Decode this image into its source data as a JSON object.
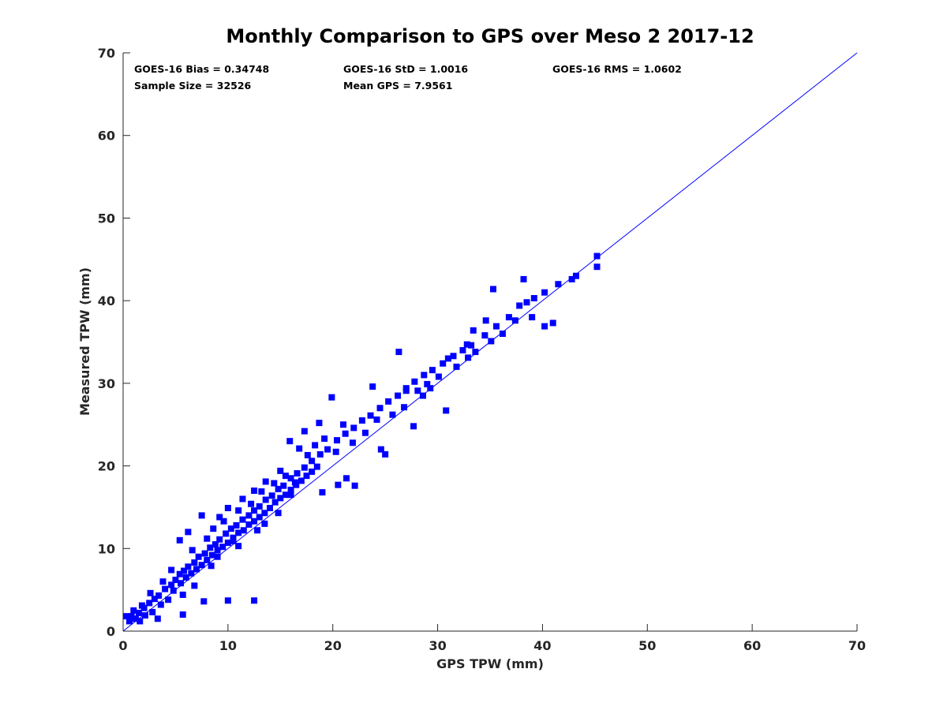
{
  "chart_data": {
    "type": "scatter",
    "title": "Monthly Comparison to GPS over Meso 2 2017-12",
    "xlabel": "GPS TPW (mm)",
    "ylabel": "Measured TPW (mm)",
    "xlim": [
      0,
      70
    ],
    "ylim": [
      0,
      70
    ],
    "xticks": [
      0,
      10,
      20,
      30,
      40,
      50,
      60,
      70
    ],
    "yticks": [
      0,
      10,
      20,
      30,
      40,
      50,
      60,
      70
    ],
    "grid": false,
    "annotations": [
      {
        "text": "GOES-16 Bias = 0.34748",
        "position": "top-left"
      },
      {
        "text": "GOES-16 StD = 1.0016",
        "position": "top-center"
      },
      {
        "text": "GOES-16 RMS = 1.0602",
        "position": "top-right"
      },
      {
        "text": "Sample Size = 32526",
        "position": "top-left"
      },
      {
        "text": "Mean GPS = 7.9561",
        "position": "top-center"
      }
    ],
    "reference_line": {
      "name": "1:1 line",
      "x": [
        0,
        70
      ],
      "y": [
        0,
        70
      ],
      "color": "#0000ff"
    },
    "series": [
      {
        "name": "GOES-16 vs GPS",
        "marker": "square",
        "color": "#0000ff",
        "points": [
          [
            0.8,
            1.8
          ],
          [
            1.2,
            1.5
          ],
          [
            1.5,
            2.2
          ],
          [
            2.0,
            2.8
          ],
          [
            2.5,
            3.4
          ],
          [
            3.0,
            3.9
          ],
          [
            3.4,
            4.3
          ],
          [
            4.0,
            5.1
          ],
          [
            4.6,
            5.6
          ],
          [
            5.0,
            6.2
          ],
          [
            5.4,
            6.9
          ],
          [
            5.8,
            7.3
          ],
          [
            6.2,
            7.8
          ],
          [
            6.8,
            8.3
          ],
          [
            7.2,
            9.0
          ],
          [
            7.8,
            9.4
          ],
          [
            8.3,
            10.1
          ],
          [
            8.8,
            10.5
          ],
          [
            9.2,
            11.1
          ],
          [
            9.8,
            11.8
          ],
          [
            10.3,
            12.4
          ],
          [
            10.8,
            12.8
          ],
          [
            11.4,
            13.5
          ],
          [
            12.0,
            14.0
          ],
          [
            12.5,
            14.6
          ],
          [
            13.0,
            15.1
          ],
          [
            13.6,
            15.9
          ],
          [
            14.2,
            16.4
          ],
          [
            14.8,
            17.2
          ],
          [
            15.3,
            17.6
          ],
          [
            16.0,
            18.5
          ],
          [
            16.6,
            19.1
          ],
          [
            17.3,
            19.8
          ],
          [
            18.0,
            20.6
          ],
          [
            18.8,
            21.4
          ],
          [
            19.5,
            22.0
          ],
          [
            20.4,
            23.1
          ],
          [
            21.2,
            23.9
          ],
          [
            22.0,
            24.6
          ],
          [
            22.8,
            25.5
          ],
          [
            23.6,
            26.1
          ],
          [
            24.5,
            27.0
          ],
          [
            25.3,
            27.8
          ],
          [
            26.2,
            28.5
          ],
          [
            27.0,
            29.4
          ],
          [
            27.8,
            30.2
          ],
          [
            28.7,
            31.0
          ],
          [
            29.5,
            31.6
          ],
          [
            30.5,
            32.4
          ],
          [
            31.5,
            33.3
          ],
          [
            32.4,
            34.0
          ],
          [
            33.2,
            34.6
          ],
          [
            34.5,
            35.8
          ],
          [
            35.6,
            36.9
          ],
          [
            36.8,
            38.0
          ],
          [
            37.8,
            39.4
          ],
          [
            38.5,
            39.8
          ],
          [
            39.2,
            40.3
          ],
          [
            40.2,
            41.0
          ],
          [
            41.5,
            42.0
          ],
          [
            42.8,
            42.6
          ],
          [
            43.2,
            43.0
          ],
          [
            45.2,
            45.4
          ],
          [
            45.2,
            44.1
          ],
          [
            41.0,
            37.3
          ],
          [
            40.2,
            36.9
          ],
          [
            39.0,
            38.0
          ],
          [
            38.2,
            42.6
          ],
          [
            35.3,
            41.4
          ],
          [
            34.6,
            37.6
          ],
          [
            33.4,
            36.4
          ],
          [
            32.8,
            34.7
          ],
          [
            31.0,
            33.0
          ],
          [
            30.8,
            26.7
          ],
          [
            29.3,
            29.4
          ],
          [
            28.6,
            28.5
          ],
          [
            27.0,
            29.1
          ],
          [
            26.3,
            33.8
          ],
          [
            23.8,
            29.6
          ],
          [
            21.0,
            25.0
          ],
          [
            19.9,
            28.3
          ],
          [
            18.7,
            25.2
          ],
          [
            17.3,
            24.2
          ],
          [
            16.8,
            22.1
          ],
          [
            15.9,
            23.0
          ],
          [
            16.4,
            18.0
          ],
          [
            15.0,
            19.4
          ],
          [
            13.6,
            18.1
          ],
          [
            12.5,
            17.0
          ],
          [
            11.4,
            16.0
          ],
          [
            10.0,
            14.9
          ],
          [
            9.2,
            13.8
          ],
          [
            7.5,
            14.0
          ],
          [
            6.2,
            12.0
          ],
          [
            5.4,
            11.0
          ],
          [
            8.4,
            7.9
          ],
          [
            9.0,
            9.0
          ],
          [
            10.5,
            10.9
          ],
          [
            11.0,
            10.3
          ],
          [
            14.8,
            14.3
          ],
          [
            19.0,
            16.8
          ],
          [
            21.3,
            18.5
          ],
          [
            25.0,
            21.4
          ],
          [
            27.7,
            24.8
          ],
          [
            22.1,
            17.6
          ],
          [
            20.5,
            17.7
          ],
          [
            24.6,
            22.0
          ],
          [
            16.0,
            16.5
          ],
          [
            13.5,
            13.0
          ],
          [
            12.8,
            12.2
          ],
          [
            6.8,
            5.5
          ],
          [
            5.7,
            4.4
          ],
          [
            4.3,
            3.8
          ],
          [
            3.6,
            3.2
          ],
          [
            2.8,
            2.3
          ],
          [
            2.1,
            1.9
          ],
          [
            1.6,
            1.2
          ],
          [
            0.6,
            1.2
          ],
          [
            0.3,
            1.8
          ],
          [
            7.7,
            3.6
          ],
          [
            10.0,
            3.7
          ],
          [
            12.5,
            3.7
          ],
          [
            5.7,
            2.0
          ],
          [
            3.3,
            1.5
          ],
          [
            2.6,
            4.6
          ],
          [
            1.8,
            3.1
          ],
          [
            1.0,
            2.5
          ],
          [
            3.8,
            6.0
          ],
          [
            4.6,
            7.4
          ],
          [
            6.6,
            9.8
          ],
          [
            8.0,
            11.2
          ],
          [
            8.6,
            12.4
          ],
          [
            9.6,
            13.3
          ],
          [
            11.0,
            14.6
          ],
          [
            12.2,
            15.4
          ],
          [
            13.2,
            16.9
          ],
          [
            14.4,
            17.9
          ],
          [
            15.5,
            18.8
          ],
          [
            17.6,
            21.3
          ],
          [
            18.3,
            22.5
          ],
          [
            19.2,
            23.3
          ],
          [
            20.3,
            21.7
          ],
          [
            21.9,
            22.8
          ],
          [
            23.1,
            24.0
          ],
          [
            24.2,
            25.6
          ],
          [
            25.7,
            26.2
          ],
          [
            26.8,
            27.1
          ],
          [
            28.1,
            29.1
          ],
          [
            29.0,
            29.9
          ],
          [
            30.1,
            30.8
          ],
          [
            31.8,
            32.0
          ],
          [
            32.9,
            33.1
          ],
          [
            33.6,
            33.8
          ],
          [
            35.1,
            35.1
          ],
          [
            36.2,
            36.0
          ],
          [
            37.4,
            37.6
          ],
          [
            4.8,
            4.9
          ],
          [
            5.5,
            5.8
          ],
          [
            6.0,
            6.5
          ],
          [
            6.5,
            7.0
          ],
          [
            7.0,
            7.5
          ],
          [
            7.5,
            8.0
          ],
          [
            8.0,
            8.6
          ],
          [
            8.5,
            9.2
          ],
          [
            9.0,
            9.8
          ],
          [
            9.5,
            10.2
          ],
          [
            10.0,
            10.7
          ],
          [
            10.5,
            11.3
          ],
          [
            11.0,
            11.9
          ],
          [
            11.5,
            12.2
          ],
          [
            12.0,
            12.9
          ],
          [
            12.5,
            13.3
          ],
          [
            13.0,
            13.8
          ],
          [
            13.5,
            14.3
          ],
          [
            14.0,
            14.9
          ],
          [
            14.5,
            15.6
          ],
          [
            15.0,
            16.1
          ],
          [
            15.5,
            16.5
          ],
          [
            16.0,
            17.1
          ],
          [
            16.5,
            17.7
          ],
          [
            17.0,
            18.2
          ],
          [
            17.5,
            18.8
          ],
          [
            18.0,
            19.3
          ],
          [
            18.5,
            19.9
          ]
        ]
      }
    ]
  }
}
